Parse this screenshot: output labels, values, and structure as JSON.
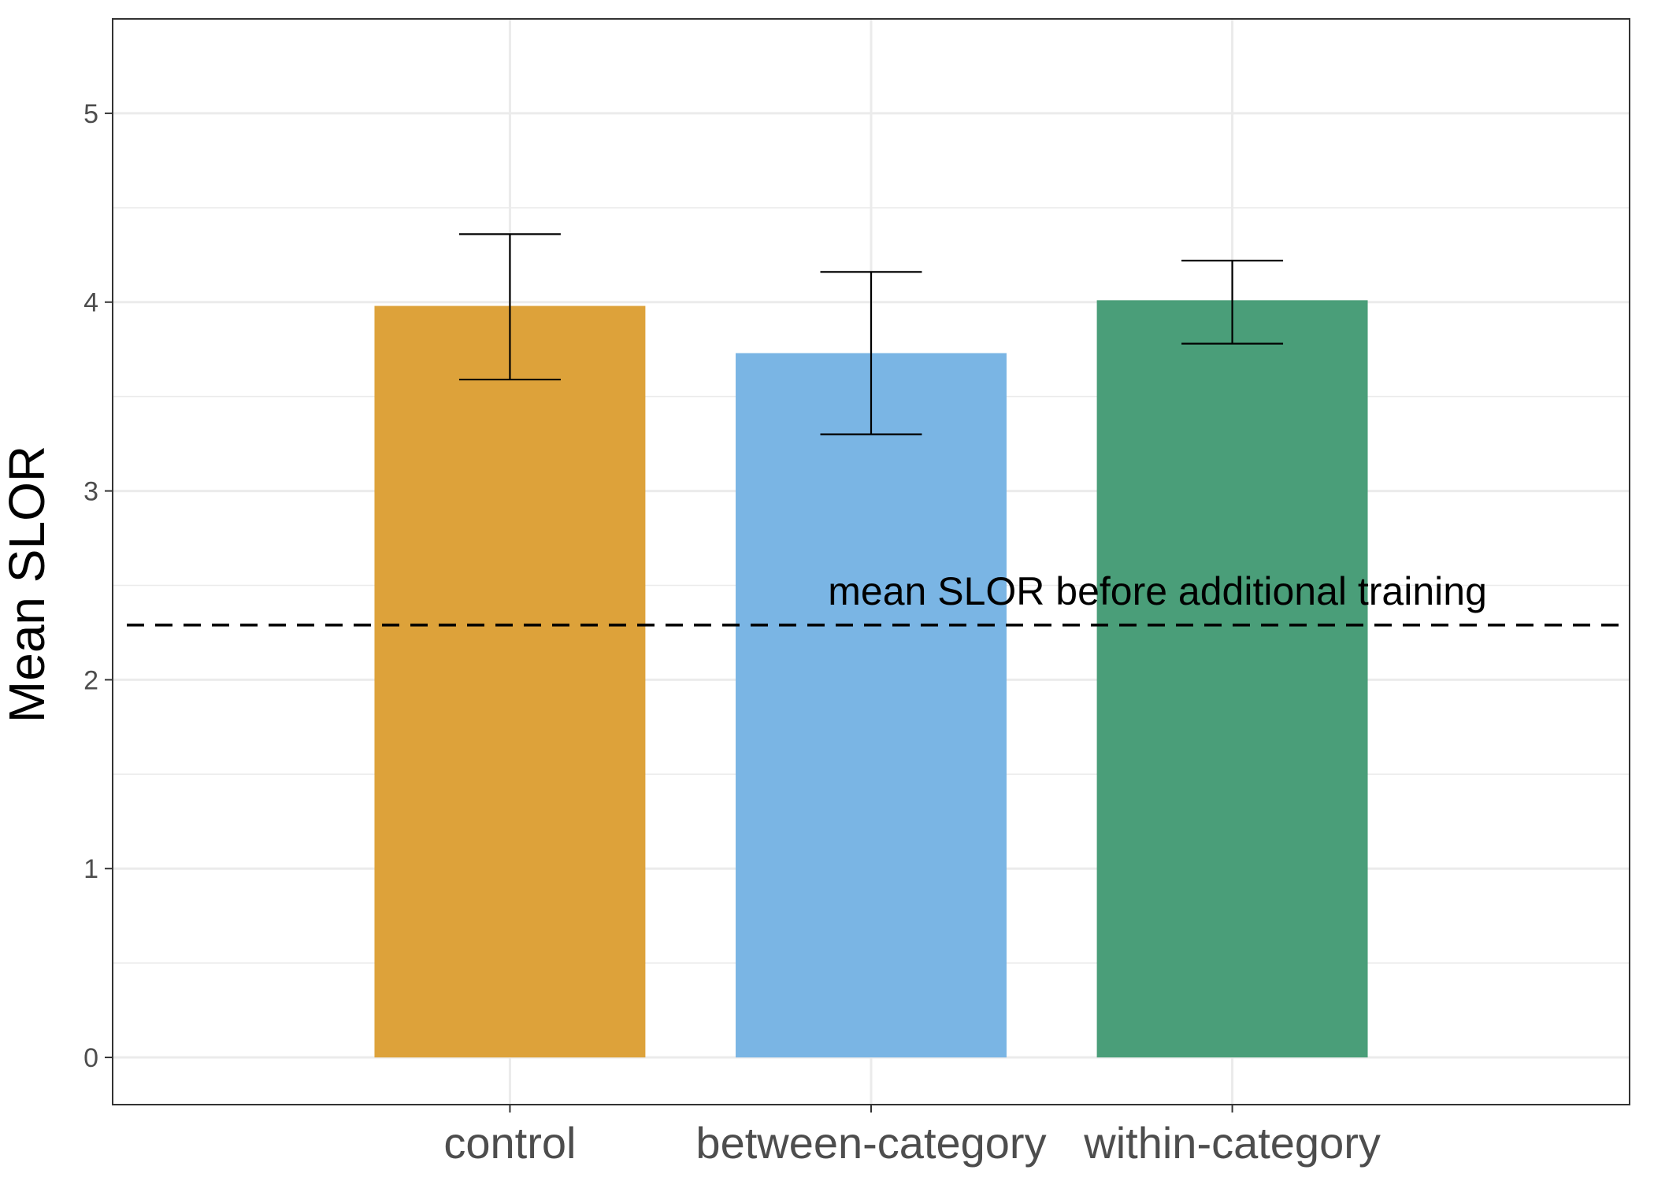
{
  "chart_data": {
    "type": "bar",
    "title": "",
    "xlabel": "",
    "ylabel": "Mean SLOR",
    "categories": [
      "control",
      "between-category",
      "within-category"
    ],
    "values": [
      3.98,
      3.73,
      4.01
    ],
    "error_bars": [
      {
        "lower": 3.59,
        "upper": 4.36
      },
      {
        "lower": 3.3,
        "upper": 4.16
      },
      {
        "lower": 3.78,
        "upper": 4.22
      }
    ],
    "colors": [
      "#DDA23A",
      "#7AB5E4",
      "#4A9E79"
    ],
    "ylim": [
      -0.25,
      5.5
    ],
    "yticks": [
      0,
      1,
      2,
      3,
      4,
      5
    ],
    "grid": true,
    "legend": "none",
    "reference_line": {
      "value": 2.29,
      "style": "dashed",
      "label": "mean SLOR before additional training"
    }
  }
}
